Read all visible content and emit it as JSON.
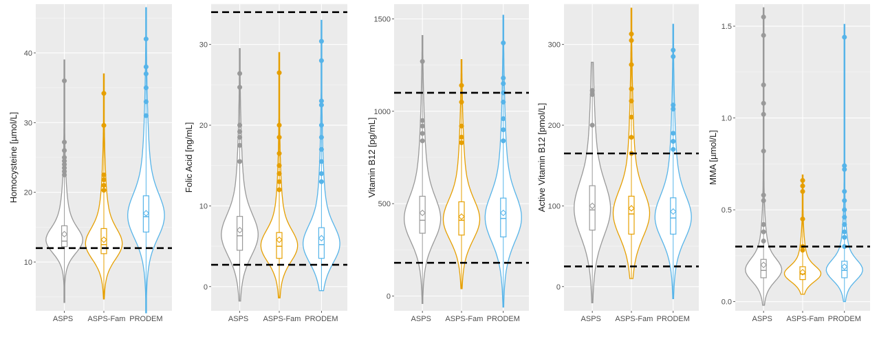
{
  "chart_data": [
    {
      "type": "violin",
      "ylabel": "Homocysteine [µmol/L]",
      "ylim": [
        3,
        47
      ],
      "yticks": [
        10,
        20,
        30,
        40
      ],
      "categories": [
        "ASPS",
        "ASPS-Fam",
        "PRODEM"
      ],
      "reference_lines": [
        12
      ],
      "grid": true,
      "series": [
        {
          "category": "ASPS",
          "color": "#999999",
          "min": 4.2,
          "q1": 12.2,
          "median": 13.0,
          "q3": 15.2,
          "mean": 14.0,
          "max": 39.0,
          "outliers": [
            22.5,
            23,
            23.5,
            24,
            24.5,
            25,
            26,
            27.2,
            36
          ]
        },
        {
          "category": "ASPS-Fam",
          "color": "#E69F00",
          "min": 4.7,
          "q1": 11.2,
          "median": 12.5,
          "q3": 14.8,
          "mean": 13.2,
          "max": 37.0,
          "outliers": [
            20.3,
            21,
            21.8,
            22.5,
            29.6,
            34.2
          ]
        },
        {
          "category": "PRODEM",
          "color": "#56B4E9",
          "min": 2.7,
          "q1": 14.3,
          "median": 16.5,
          "q3": 19.5,
          "mean": 17.0,
          "max": 46.5,
          "outliers": [
            31,
            33,
            35,
            37,
            38,
            42
          ]
        }
      ]
    },
    {
      "type": "violin",
      "ylabel": "Folic Acid [ng/mL]",
      "ylim": [
        -3,
        35
      ],
      "yticks": [
        0,
        10,
        20,
        30
      ],
      "categories": [
        "ASPS",
        "ASPS-Fam",
        "PRODEM"
      ],
      "reference_lines": [
        2.7,
        34
      ],
      "grid": true,
      "series": [
        {
          "category": "ASPS",
          "color": "#999999",
          "min": -1.8,
          "q1": 4.5,
          "median": 6.3,
          "q3": 8.7,
          "mean": 7.0,
          "max": 29.5,
          "outliers": [
            15.5,
            17.5,
            18.5,
            19.2,
            20,
            24.7,
            26.4
          ]
        },
        {
          "category": "ASPS-Fam",
          "color": "#E69F00",
          "min": -1.4,
          "q1": 3.5,
          "median": 5.0,
          "q3": 6.7,
          "mean": 5.8,
          "max": 29.0,
          "outliers": [
            12,
            13,
            14,
            15,
            16.5,
            18.5,
            20,
            26.5
          ]
        },
        {
          "category": "PRODEM",
          "color": "#56B4E9",
          "min": -0.5,
          "q1": 3.5,
          "median": 5.2,
          "q3": 7.3,
          "mean": 6.0,
          "max": 33.0,
          "outliers": [
            13,
            14,
            15.5,
            17,
            18.5,
            20,
            22.5,
            23,
            28,
            30.4
          ]
        }
      ]
    },
    {
      "type": "violin",
      "ylabel": "Vitamin B12 [pg/mL]",
      "ylim": [
        -80,
        1580
      ],
      "yticks": [
        0,
        500,
        1000,
        1500
      ],
      "categories": [
        "ASPS",
        "ASPS-Fam",
        "PRODEM"
      ],
      "reference_lines": [
        180,
        1100
      ],
      "grid": true,
      "series": [
        {
          "category": "ASPS",
          "color": "#999999",
          "min": -40,
          "q1": 340,
          "median": 410,
          "q3": 540,
          "mean": 450,
          "max": 1410,
          "outliers": [
            840,
            880,
            920,
            950,
            1270
          ]
        },
        {
          "category": "ASPS-Fam",
          "color": "#E69F00",
          "min": 40,
          "q1": 330,
          "median": 410,
          "q3": 510,
          "mean": 430,
          "max": 1280,
          "outliers": [
            830,
            860,
            920,
            1050,
            1140
          ]
        },
        {
          "category": "PRODEM",
          "color": "#56B4E9",
          "min": -60,
          "q1": 320,
          "median": 420,
          "q3": 530,
          "mean": 450,
          "max": 1520,
          "outliers": [
            840,
            900,
            960,
            1050,
            1100,
            1150,
            1180,
            1370
          ]
        }
      ]
    },
    {
      "type": "violin",
      "ylabel": "Active Vitamin B12 [pmol/L]",
      "ylim": [
        -30,
        350
      ],
      "yticks": [
        0,
        100,
        200,
        300
      ],
      "categories": [
        "ASPS",
        "ASPS-Fam",
        "PRODEM"
      ],
      "reference_lines": [
        25,
        165
      ],
      "grid": true,
      "series": [
        {
          "category": "ASPS",
          "color": "#999999",
          "min": -20,
          "q1": 70,
          "median": 95,
          "q3": 125,
          "mean": 100,
          "max": 278,
          "outliers": [
            200,
            238,
            243
          ]
        },
        {
          "category": "ASPS-Fam",
          "color": "#E69F00",
          "min": 10,
          "q1": 65,
          "median": 90,
          "q3": 112,
          "mean": 97,
          "max": 345,
          "outliers": [
            165,
            185,
            210,
            230,
            245,
            275,
            305,
            313
          ]
        },
        {
          "category": "PRODEM",
          "color": "#56B4E9",
          "min": -15,
          "q1": 65,
          "median": 85,
          "q3": 110,
          "mean": 93,
          "max": 325,
          "outliers": [
            170,
            180,
            190,
            220,
            225,
            285,
            293
          ]
        }
      ]
    },
    {
      "type": "violin",
      "ylabel": "MMA [µmol/L]",
      "ylim": [
        -0.05,
        1.62
      ],
      "yticks": [
        0.0,
        0.5,
        1.0,
        1.5
      ],
      "categories": [
        "ASPS",
        "ASPS-Fam",
        "PRODEM"
      ],
      "reference_lines": [
        0.3
      ],
      "grid": true,
      "series": [
        {
          "category": "ASPS",
          "color": "#999999",
          "min": -0.02,
          "q1": 0.13,
          "median": 0.17,
          "q3": 0.23,
          "mean": 0.2,
          "max": 1.6,
          "outliers": [
            0.33,
            0.38,
            0.42,
            0.55,
            0.58,
            0.82,
            1.02,
            1.08,
            1.18,
            1.45,
            1.55
          ]
        },
        {
          "category": "ASPS-Fam",
          "color": "#E69F00",
          "min": 0.04,
          "q1": 0.12,
          "median": 0.15,
          "q3": 0.19,
          "mean": 0.16,
          "max": 0.69,
          "outliers": [
            0.28,
            0.3,
            0.45,
            0.6,
            0.63,
            0.66
          ]
        },
        {
          "category": "PRODEM",
          "color": "#56B4E9",
          "min": 0.0,
          "q1": 0.13,
          "median": 0.17,
          "q3": 0.22,
          "mean": 0.19,
          "max": 1.51,
          "outliers": [
            0.3,
            0.35,
            0.38,
            0.42,
            0.46,
            0.5,
            0.55,
            0.6,
            0.72,
            0.74,
            1.44
          ]
        }
      ]
    }
  ]
}
